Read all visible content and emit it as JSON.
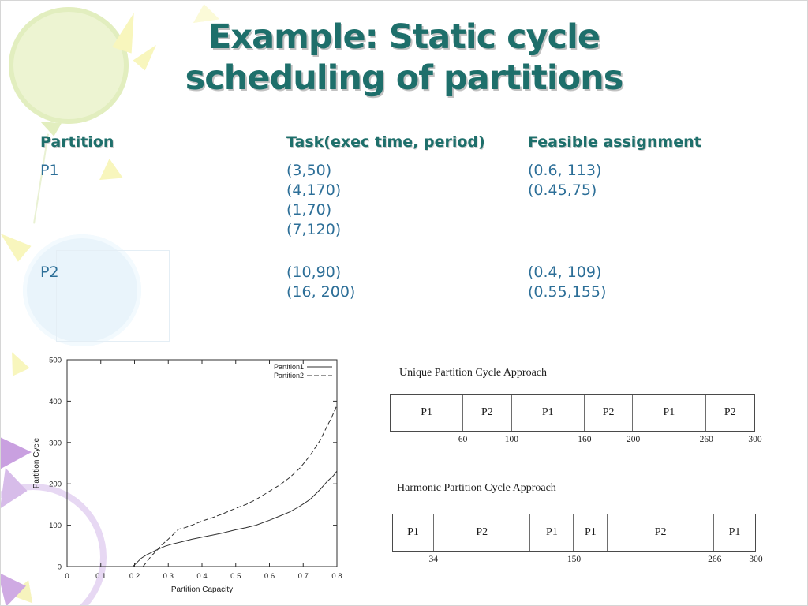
{
  "theme": {
    "title_color": "#1e6f6b",
    "body_text_color": "#2d6f98",
    "diagram_ink_color": "#2f2f2f",
    "decoration_green": "#edf4d2",
    "decoration_yellow": "#f8f6bd",
    "decoration_blue": "#e9f4fb",
    "decoration_purple": "#c9a0e0"
  },
  "title": {
    "line1": "Example: Static cycle",
    "line2": "scheduling of partitions"
  },
  "table": {
    "headers": [
      "Partition",
      "Task(exec time, period)",
      "Feasible assignment"
    ],
    "rows": [
      {
        "partition": "P1",
        "tasks": [
          "(3,50)",
          "(4,170)",
          "(1,70)",
          "(7,120)"
        ],
        "assignments": [
          "(0.6, 113)",
          "(0.45,75)"
        ]
      },
      {
        "partition": "P2",
        "tasks": [
          "(10,90)",
          "(16, 200)"
        ],
        "assignments": [
          "(0.4, 109)",
          "(0.55,155)"
        ]
      }
    ]
  },
  "chart_data": {
    "type": "line",
    "title": "",
    "xlabel": "Partition Capacity",
    "ylabel": "Partition Cycle",
    "xlim": [
      0,
      0.8
    ],
    "ylim": [
      0,
      500
    ],
    "xticks": [
      "0",
      "0.1",
      "0.2",
      "0.3",
      "0.4",
      "0.5",
      "0.6",
      "0.7",
      "0.8"
    ],
    "yticks": [
      "0",
      "100",
      "200",
      "300",
      "400",
      "500"
    ],
    "grid": false,
    "legend_position": "top-right-inside",
    "series": [
      {
        "name": "Partition1",
        "line_style": "solid",
        "points": [
          [
            0.195,
            0
          ],
          [
            0.205,
            8
          ],
          [
            0.22,
            20
          ],
          [
            0.235,
            28
          ],
          [
            0.25,
            34
          ],
          [
            0.27,
            42
          ],
          [
            0.29,
            49
          ],
          [
            0.31,
            54
          ],
          [
            0.34,
            60
          ],
          [
            0.37,
            66
          ],
          [
            0.4,
            71
          ],
          [
            0.43,
            76
          ],
          [
            0.46,
            81
          ],
          [
            0.5,
            89
          ],
          [
            0.53,
            94
          ],
          [
            0.56,
            100
          ],
          [
            0.6,
            112
          ],
          [
            0.63,
            122
          ],
          [
            0.66,
            132
          ],
          [
            0.69,
            146
          ],
          [
            0.72,
            162
          ],
          [
            0.75,
            186
          ],
          [
            0.77,
            205
          ],
          [
            0.79,
            220
          ],
          [
            0.8,
            231
          ]
        ]
      },
      {
        "name": "Partition2",
        "line_style": "dashed",
        "points": [
          [
            0.225,
            0
          ],
          [
            0.235,
            10
          ],
          [
            0.25,
            26
          ],
          [
            0.265,
            38
          ],
          [
            0.28,
            52
          ],
          [
            0.3,
            66
          ],
          [
            0.315,
            78
          ],
          [
            0.325,
            86
          ],
          [
            0.33,
            90
          ],
          [
            0.35,
            94
          ],
          [
            0.37,
            100
          ],
          [
            0.4,
            110
          ],
          [
            0.43,
            118
          ],
          [
            0.46,
            127
          ],
          [
            0.5,
            141
          ],
          [
            0.53,
            150
          ],
          [
            0.56,
            162
          ],
          [
            0.6,
            182
          ],
          [
            0.63,
            197
          ],
          [
            0.66,
            215
          ],
          [
            0.69,
            238
          ],
          [
            0.72,
            268
          ],
          [
            0.75,
            305
          ],
          [
            0.77,
            338
          ],
          [
            0.785,
            362
          ],
          [
            0.8,
            390
          ]
        ]
      }
    ]
  },
  "timelines": [
    {
      "title": "Unique Partition Cycle Approach",
      "total": 300,
      "segments": [
        {
          "label": "P1",
          "start": 0,
          "end": 60
        },
        {
          "label": "P2",
          "start": 60,
          "end": 100
        },
        {
          "label": "P1",
          "start": 100,
          "end": 160
        },
        {
          "label": "P2",
          "start": 160,
          "end": 200
        },
        {
          "label": "P1",
          "start": 200,
          "end": 260
        },
        {
          "label": "P2",
          "start": 260,
          "end": 300
        }
      ],
      "tick_labels": [
        60,
        100,
        160,
        200,
        260,
        300
      ]
    },
    {
      "title": "Harmonic Partition Cycle Approach",
      "total": 300,
      "segments": [
        {
          "label": "P1",
          "start": 0,
          "end": 34
        },
        {
          "label": "P2",
          "start": 34,
          "end": 114
        },
        {
          "label": "P1",
          "start": 114,
          "end": 150
        },
        {
          "label": "P1",
          "start": 150,
          "end": 178
        },
        {
          "label": "P2",
          "start": 178,
          "end": 266
        },
        {
          "label": "P1",
          "start": 266,
          "end": 300
        }
      ],
      "tick_labels": [
        34,
        150,
        266,
        300
      ]
    }
  ]
}
